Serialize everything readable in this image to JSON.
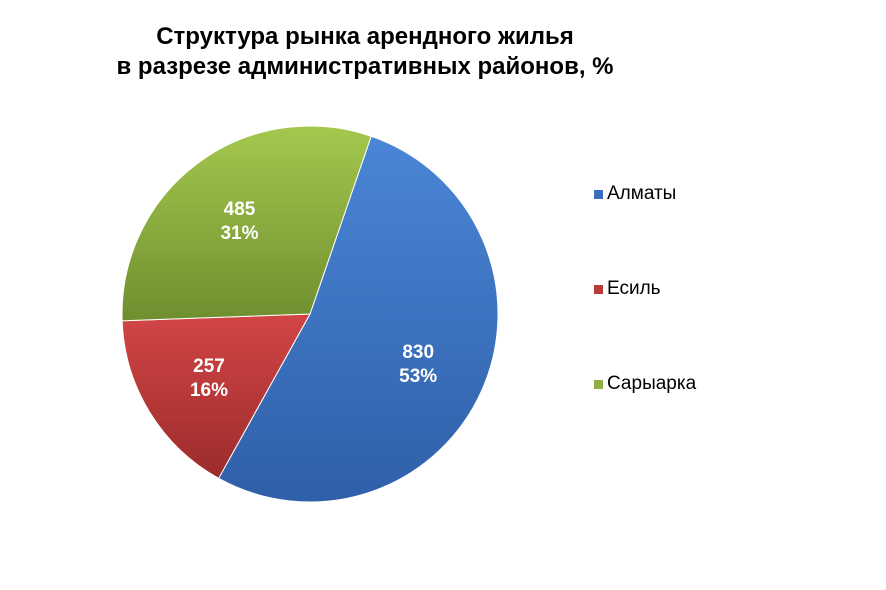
{
  "chart_data": {
    "type": "pie",
    "title_line1": "Структура рынка арендного жилья",
    "title_line2": "в разрезе административных районов, %",
    "slices": [
      {
        "name": "Алматы",
        "value": 830,
        "percent": "53%",
        "color": "#3a6fbd"
      },
      {
        "name": "Есиль",
        "value": 257,
        "percent": "16%",
        "color": "#bb3a3a"
      },
      {
        "name": "Сарыарка",
        "value": 485,
        "percent": "31%",
        "color": "#8fb040"
      }
    ],
    "legend_position": "right",
    "grid": false
  }
}
